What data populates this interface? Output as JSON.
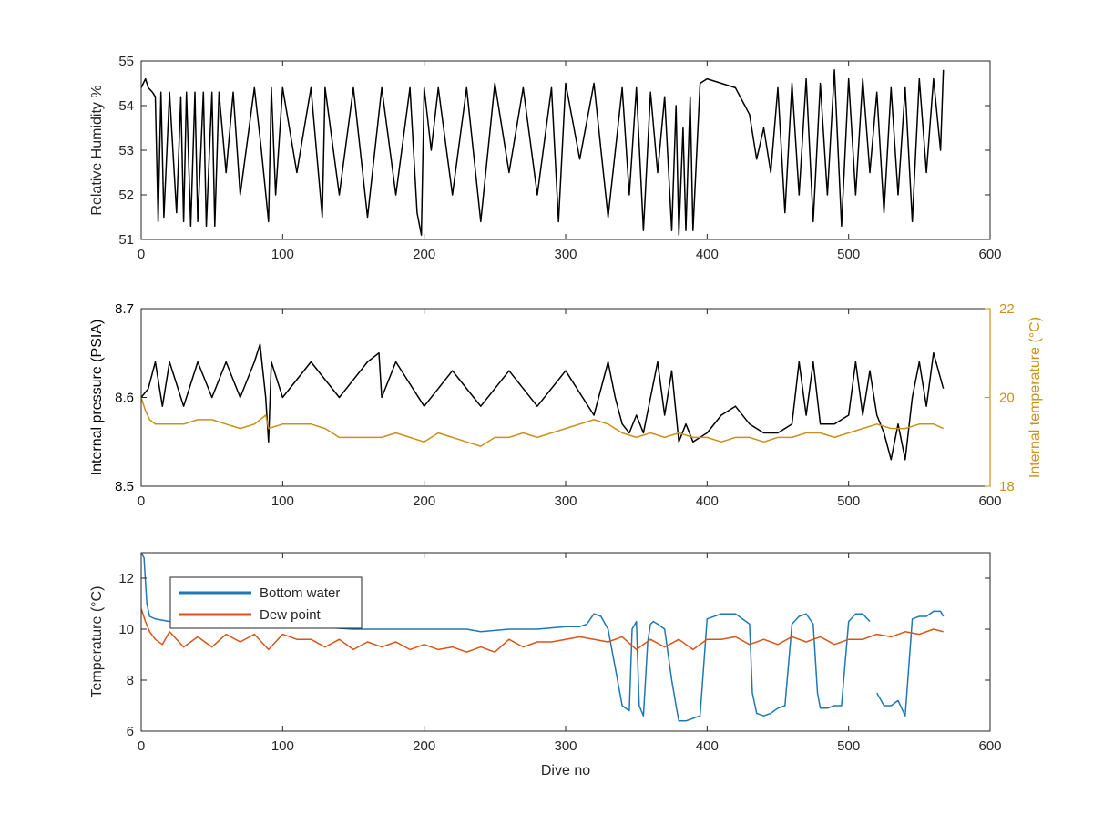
{
  "chart_data": [
    {
      "type": "line",
      "xlabel": "",
      "ylabel": "Relative Humidity %",
      "xlim": [
        0,
        600
      ],
      "ylim": [
        51,
        55
      ],
      "xticks": [
        "0",
        "100",
        "200",
        "300",
        "400",
        "500",
        "600"
      ],
      "yticks": [
        "51",
        "52",
        "53",
        "54",
        "55"
      ],
      "grid": false,
      "series": [
        {
          "color": "#000000",
          "x": [
            0,
            3,
            5,
            8,
            10,
            12,
            14,
            16,
            20,
            25,
            28,
            30,
            32,
            35,
            38,
            40,
            44,
            46,
            50,
            52,
            55,
            60,
            65,
            70,
            80,
            85,
            90,
            92,
            95,
            100,
            110,
            120,
            128,
            130,
            140,
            150,
            160,
            170,
            180,
            190,
            195,
            198,
            200,
            205,
            210,
            220,
            230,
            240,
            250,
            260,
            270,
            280,
            290,
            295,
            300,
            310,
            320,
            330,
            340,
            345,
            350,
            355,
            360,
            365,
            370,
            375,
            378,
            380,
            383,
            385,
            388,
            390,
            395,
            400,
            410,
            420,
            430,
            435,
            440,
            445,
            450,
            455,
            460,
            465,
            470,
            475,
            480,
            485,
            490,
            495,
            500,
            505,
            510,
            515,
            520,
            525,
            530,
            535,
            540,
            545,
            550,
            555,
            560,
            565,
            567
          ],
          "values": [
            54.4,
            54.6,
            54.4,
            54.3,
            54.2,
            51.4,
            54.3,
            51.5,
            54.3,
            51.6,
            54.2,
            51.4,
            54.3,
            51.3,
            54.3,
            51.4,
            54.3,
            51.3,
            54.3,
            51.3,
            54.3,
            52.5,
            54.3,
            52.0,
            54.4,
            53.0,
            51.4,
            54.4,
            52.0,
            54.4,
            52.5,
            54.4,
            51.5,
            54.4,
            52.0,
            54.4,
            51.5,
            54.4,
            52.0,
            54.4,
            51.6,
            51.1,
            54.4,
            53.0,
            54.4,
            52.0,
            54.4,
            51.4,
            54.5,
            52.5,
            54.4,
            52.0,
            54.4,
            51.4,
            54.5,
            52.8,
            54.5,
            51.5,
            54.4,
            52.0,
            54.4,
            51.2,
            54.3,
            52.5,
            54.2,
            51.2,
            54.0,
            51.1,
            53.5,
            51.2,
            54.2,
            51.2,
            54.5,
            54.6,
            54.5,
            54.4,
            53.8,
            52.8,
            53.5,
            52.5,
            54.4,
            51.6,
            54.5,
            52.0,
            54.6,
            51.4,
            54.5,
            52.0,
            54.8,
            51.3,
            54.6,
            52.0,
            54.6,
            52.5,
            54.3,
            51.6,
            54.4,
            52.0,
            54.4,
            51.4,
            54.6,
            52.5,
            54.6,
            53.0,
            54.8
          ]
        }
      ]
    },
    {
      "type": "line",
      "xlabel": "",
      "ylabel": "Internal pressure (PSIA)",
      "y2label": "Internal temperature (°C)",
      "xlim": [
        0,
        600
      ],
      "ylim": [
        8.5,
        8.7
      ],
      "y2lim": [
        18,
        22
      ],
      "xticks": [
        "0",
        "100",
        "200",
        "300",
        "400",
        "500",
        "600"
      ],
      "yticks": [
        "8.5",
        "8.6",
        "8.7"
      ],
      "y2ticks": [
        "18",
        "20",
        "22"
      ],
      "grid": false,
      "series": [
        {
          "axis": "left",
          "color": "#000000",
          "x": [
            0,
            5,
            10,
            15,
            20,
            30,
            40,
            50,
            60,
            70,
            80,
            84,
            88,
            90,
            92,
            100,
            120,
            140,
            160,
            168,
            170,
            180,
            200,
            220,
            240,
            260,
            280,
            300,
            320,
            330,
            335,
            340,
            345,
            350,
            355,
            360,
            365,
            370,
            375,
            380,
            385,
            390,
            400,
            410,
            420,
            430,
            440,
            450,
            460,
            465,
            470,
            475,
            480,
            490,
            500,
            505,
            510,
            515,
            520,
            525,
            530,
            535,
            540,
            545,
            550,
            555,
            560,
            567
          ],
          "values": [
            8.6,
            8.61,
            8.64,
            8.59,
            8.64,
            8.59,
            8.64,
            8.6,
            8.64,
            8.6,
            8.64,
            8.66,
            8.6,
            8.55,
            8.64,
            8.6,
            8.64,
            8.6,
            8.64,
            8.65,
            8.6,
            8.64,
            8.59,
            8.63,
            8.59,
            8.63,
            8.59,
            8.63,
            8.58,
            8.64,
            8.6,
            8.57,
            8.56,
            8.58,
            8.56,
            8.6,
            8.64,
            8.58,
            8.63,
            8.55,
            8.57,
            8.55,
            8.56,
            8.58,
            8.59,
            8.57,
            8.56,
            8.56,
            8.57,
            8.64,
            8.58,
            8.64,
            8.57,
            8.57,
            8.58,
            8.64,
            8.58,
            8.63,
            8.58,
            8.56,
            8.53,
            8.57,
            8.53,
            8.6,
            8.64,
            8.59,
            8.65,
            8.61
          ]
        },
        {
          "axis": "right",
          "color": "#c8921a",
          "x": [
            0,
            3,
            6,
            10,
            20,
            30,
            40,
            50,
            60,
            70,
            80,
            88,
            90,
            100,
            110,
            120,
            130,
            140,
            150,
            160,
            170,
            180,
            190,
            200,
            210,
            220,
            230,
            240,
            250,
            260,
            270,
            280,
            290,
            300,
            310,
            320,
            330,
            340,
            350,
            360,
            370,
            380,
            390,
            400,
            410,
            420,
            430,
            440,
            450,
            460,
            470,
            480,
            490,
            500,
            510,
            520,
            530,
            540,
            550,
            560,
            567
          ],
          "values": [
            20.0,
            19.7,
            19.5,
            19.4,
            19.4,
            19.4,
            19.5,
            19.5,
            19.4,
            19.3,
            19.4,
            19.6,
            19.3,
            19.4,
            19.4,
            19.4,
            19.3,
            19.1,
            19.1,
            19.1,
            19.1,
            19.2,
            19.1,
            19.0,
            19.2,
            19.1,
            19.0,
            18.9,
            19.1,
            19.1,
            19.2,
            19.1,
            19.2,
            19.3,
            19.4,
            19.5,
            19.4,
            19.2,
            19.1,
            19.2,
            19.1,
            19.2,
            19.1,
            19.1,
            19.0,
            19.1,
            19.1,
            19.0,
            19.1,
            19.1,
            19.2,
            19.2,
            19.1,
            19.2,
            19.3,
            19.4,
            19.3,
            19.3,
            19.4,
            19.4,
            19.3
          ]
        }
      ]
    },
    {
      "type": "line",
      "xlabel": "Dive no",
      "ylabel": "Temperature (°C)",
      "xlim": [
        0,
        600
      ],
      "ylim": [
        6,
        13
      ],
      "xticks": [
        "0",
        "100",
        "200",
        "300",
        "400",
        "500",
        "600"
      ],
      "yticks": [
        "6",
        "8",
        "10",
        "12"
      ],
      "grid": false,
      "legend": "top-left",
      "series": [
        {
          "name": "Bottom water",
          "color": "#1f77b4",
          "x": [
            0,
            2,
            4,
            6,
            10,
            20,
            40,
            60,
            80,
            100,
            120,
            150,
            200,
            230,
            240,
            260,
            280,
            300,
            310,
            315,
            320,
            325,
            330,
            335,
            340,
            345,
            347,
            350,
            352,
            355,
            358,
            360,
            362,
            365,
            370,
            375,
            378,
            380,
            385,
            390,
            395,
            400,
            410,
            420,
            430,
            432,
            435,
            440,
            445,
            450,
            455,
            460,
            465,
            470,
            475,
            478,
            480,
            485,
            490,
            495,
            500,
            505,
            510,
            515,
            518,
            520,
            525,
            530,
            535,
            540,
            545,
            550,
            555,
            560,
            565,
            567
          ],
          "values": [
            13.0,
            12.8,
            11.0,
            10.5,
            10.4,
            10.3,
            10.2,
            10.2,
            10.1,
            10.1,
            10.1,
            10.0,
            10.0,
            10.0,
            9.9,
            10.0,
            10.0,
            10.1,
            10.1,
            10.2,
            10.6,
            10.5,
            10.0,
            8.5,
            7.0,
            6.8,
            10.0,
            10.3,
            7.0,
            6.6,
            9.5,
            10.2,
            10.3,
            10.2,
            10.0,
            8.0,
            7.0,
            6.4,
            6.4,
            6.5,
            6.6,
            10.4,
            10.6,
            10.6,
            10.2,
            7.5,
            6.7,
            6.6,
            6.7,
            6.9,
            7.0,
            10.2,
            10.5,
            10.6,
            10.2,
            7.5,
            6.9,
            6.9,
            7.0,
            7.0,
            10.3,
            10.6,
            10.6,
            10.3,
            null,
            7.5,
            7.0,
            7.0,
            7.2,
            6.6,
            10.4,
            10.5,
            10.5,
            10.7,
            10.7,
            10.5
          ]
        },
        {
          "name": "Dew point",
          "color": "#d95319",
          "x": [
            0,
            3,
            6,
            10,
            15,
            20,
            30,
            40,
            50,
            60,
            70,
            80,
            90,
            100,
            110,
            120,
            130,
            140,
            150,
            160,
            170,
            180,
            190,
            200,
            210,
            220,
            230,
            240,
            250,
            260,
            270,
            280,
            290,
            300,
            310,
            320,
            330,
            340,
            350,
            360,
            370,
            380,
            390,
            400,
            410,
            420,
            430,
            440,
            450,
            460,
            470,
            480,
            490,
            500,
            510,
            520,
            530,
            540,
            550,
            560,
            567
          ],
          "values": [
            10.8,
            10.3,
            9.9,
            9.6,
            9.4,
            9.9,
            9.3,
            9.7,
            9.3,
            9.8,
            9.5,
            9.8,
            9.2,
            9.8,
            9.6,
            9.6,
            9.3,
            9.6,
            9.2,
            9.5,
            9.3,
            9.5,
            9.2,
            9.4,
            9.2,
            9.3,
            9.1,
            9.3,
            9.1,
            9.6,
            9.3,
            9.5,
            9.5,
            9.6,
            9.7,
            9.6,
            9.5,
            9.7,
            9.2,
            9.6,
            9.3,
            9.6,
            9.2,
            9.6,
            9.6,
            9.7,
            9.4,
            9.6,
            9.4,
            9.7,
            9.5,
            9.7,
            9.4,
            9.6,
            9.6,
            9.8,
            9.7,
            9.9,
            9.8,
            10.0,
            9.9
          ]
        }
      ]
    }
  ]
}
